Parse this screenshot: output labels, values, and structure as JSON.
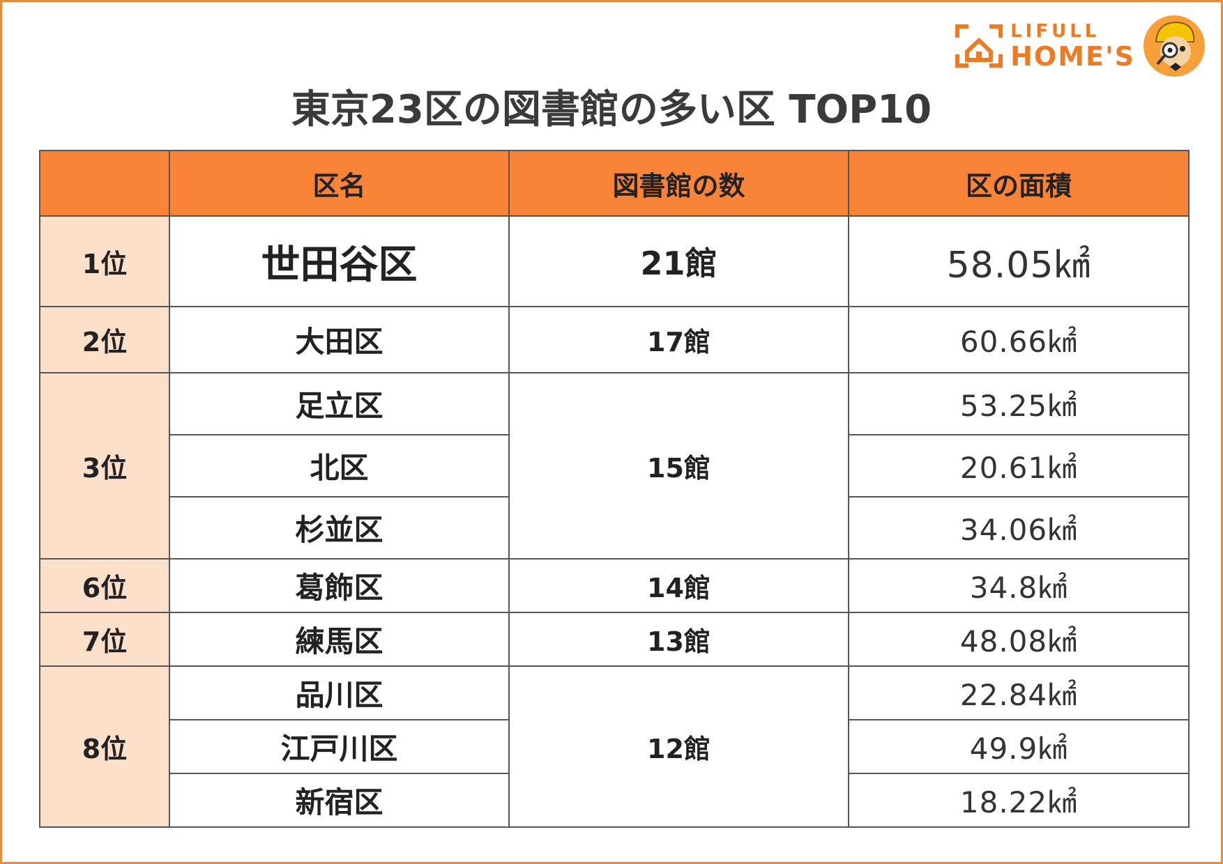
{
  "logo": {
    "top": "LIFULL",
    "bottom": "HOME'S"
  },
  "title": "東京23区の図書館の多い区 TOP10",
  "table": {
    "headers": [
      "",
      "区名",
      "図書館の数",
      "区の面積"
    ],
    "ranks": [
      "1位",
      "2位",
      "3位",
      "6位",
      "7位",
      "8位"
    ],
    "names": [
      "世田谷区",
      "大田区",
      "足立区",
      "北区",
      "杉並区",
      "葛飾区",
      "練馬区",
      "品川区",
      "江戸川区",
      "新宿区"
    ],
    "counts": [
      "21館",
      "17館",
      "15館",
      "14館",
      "13館",
      "12館"
    ],
    "areas": [
      "58.05㎢",
      "60.66㎢",
      "53.25㎢",
      "20.61㎢",
      "34.06㎢",
      "34.8㎢",
      "48.08㎢",
      "22.84㎢",
      "49.9㎢",
      "18.22㎢"
    ]
  },
  "colors": {
    "header_bg": "#f98438",
    "rank_bg": "#fde0c9",
    "accent": "#ee7b22"
  },
  "chart_data": {
    "type": "table",
    "title": "東京23区の図書館の多い区 TOP10",
    "columns": [
      "",
      "区名",
      "図書館の数",
      "区の面積"
    ],
    "rows": [
      [
        "1位",
        "世田谷区",
        "21館",
        "58.05㎢"
      ],
      [
        "2位",
        "大田区",
        "17館",
        "60.66㎢"
      ],
      [
        "3位",
        "足立区",
        "15館",
        "53.25㎢"
      ],
      [
        "3位",
        "北区",
        "15館",
        "20.61㎢"
      ],
      [
        "3位",
        "杉並区",
        "15館",
        "34.06㎢"
      ],
      [
        "6位",
        "葛飾区",
        "14館",
        "34.8㎢"
      ],
      [
        "7位",
        "練馬区",
        "13館",
        "48.08㎢"
      ],
      [
        "8位",
        "品川区",
        "12館",
        "22.84㎢"
      ],
      [
        "8位",
        "江戸川区",
        "12館",
        "49.9㎢"
      ],
      [
        "8位",
        "新宿区",
        "12館",
        "18.22㎢"
      ]
    ]
  }
}
